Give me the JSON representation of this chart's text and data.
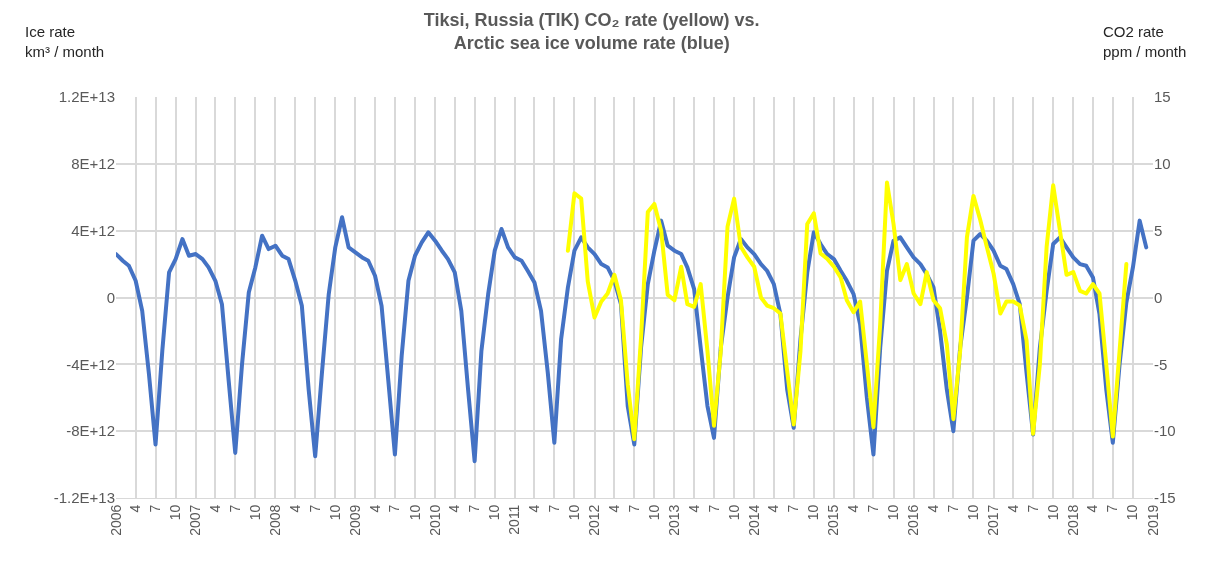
{
  "chart_data": {
    "type": "line",
    "title": "Tiksi, Russia (TIK) CO₂ rate (yellow) vs.\nArctic sea ice volume rate (blue)",
    "ylabel": "Ice rate\nkm³ / month",
    "y2label": "CO2 rate\nppm / month",
    "xlim": [
      "2006-01",
      "2019-01"
    ],
    "xticks": [
      {
        "value": "2006-01",
        "label": "2006"
      },
      {
        "value": "2006-04",
        "label": "4"
      },
      {
        "value": "2006-07",
        "label": "7"
      },
      {
        "value": "2006-10",
        "label": "10"
      },
      {
        "value": "2007-01",
        "label": "2007"
      },
      {
        "value": "2007-04",
        "label": "4"
      },
      {
        "value": "2007-07",
        "label": "7"
      },
      {
        "value": "2007-10",
        "label": "10"
      },
      {
        "value": "2008-01",
        "label": "2008"
      },
      {
        "value": "2008-04",
        "label": "4"
      },
      {
        "value": "2008-07",
        "label": "7"
      },
      {
        "value": "2008-10",
        "label": "10"
      },
      {
        "value": "2009-01",
        "label": "2009"
      },
      {
        "value": "2009-04",
        "label": "4"
      },
      {
        "value": "2009-07",
        "label": "7"
      },
      {
        "value": "2009-10",
        "label": "10"
      },
      {
        "value": "2010-01",
        "label": "2010"
      },
      {
        "value": "2010-04",
        "label": "4"
      },
      {
        "value": "2010-07",
        "label": "7"
      },
      {
        "value": "2010-10",
        "label": "10"
      },
      {
        "value": "2011-01",
        "label": "2011"
      },
      {
        "value": "2011-04",
        "label": "4"
      },
      {
        "value": "2011-07",
        "label": "7"
      },
      {
        "value": "2011-10",
        "label": "10"
      },
      {
        "value": "2012-01",
        "label": "2012"
      },
      {
        "value": "2012-04",
        "label": "4"
      },
      {
        "value": "2012-07",
        "label": "7"
      },
      {
        "value": "2012-10",
        "label": "10"
      },
      {
        "value": "2013-01",
        "label": "2013"
      },
      {
        "value": "2013-04",
        "label": "4"
      },
      {
        "value": "2013-07",
        "label": "7"
      },
      {
        "value": "2013-10",
        "label": "10"
      },
      {
        "value": "2014-01",
        "label": "2014"
      },
      {
        "value": "2014-04",
        "label": "4"
      },
      {
        "value": "2014-07",
        "label": "7"
      },
      {
        "value": "2014-10",
        "label": "10"
      },
      {
        "value": "2015-01",
        "label": "2015"
      },
      {
        "value": "2015-04",
        "label": "4"
      },
      {
        "value": "2015-07",
        "label": "7"
      },
      {
        "value": "2015-10",
        "label": "10"
      },
      {
        "value": "2016-01",
        "label": "2016"
      },
      {
        "value": "2016-04",
        "label": "4"
      },
      {
        "value": "2016-07",
        "label": "7"
      },
      {
        "value": "2016-10",
        "label": "10"
      },
      {
        "value": "2017-01",
        "label": "2017"
      },
      {
        "value": "2017-04",
        "label": "4"
      },
      {
        "value": "2017-07",
        "label": "7"
      },
      {
        "value": "2017-10",
        "label": "10"
      },
      {
        "value": "2018-01",
        "label": "2018"
      },
      {
        "value": "2018-04",
        "label": "4"
      },
      {
        "value": "2018-07",
        "label": "7"
      },
      {
        "value": "2018-10",
        "label": "10"
      },
      {
        "value": "2019-01",
        "label": "2019"
      }
    ],
    "ylim": [
      -12000000000000.0,
      12000000000000.0
    ],
    "yticks": [
      {
        "value": -12000000000000.0,
        "label": "-1.2E+13"
      },
      {
        "value": -8000000000000.0,
        "label": "-8E+12"
      },
      {
        "value": -4000000000000.0,
        "label": "-4E+12"
      },
      0,
      {
        "value": 4000000000000.0,
        "label": "4E+12"
      },
      {
        "value": 8000000000000.0,
        "label": "8E+12"
      },
      {
        "value": 12000000000000.0,
        "label": "1.2E+13"
      }
    ],
    "y2lim": [
      -15,
      15
    ],
    "y2ticks": [
      -15,
      -10,
      -5,
      0,
      5,
      10,
      15
    ],
    "grid": true,
    "series": [
      {
        "color": "#4472c4",
        "x": [
          "2006-01",
          "2006-02",
          "2006-03",
          "2006-04",
          "2006-05",
          "2006-06",
          "2006-07",
          "2006-08",
          "2006-09",
          "2006-10",
          "2006-11",
          "2006-12",
          "2007-01",
          "2007-02",
          "2007-03",
          "2007-04",
          "2007-05",
          "2007-06",
          "2007-07",
          "2007-08",
          "2007-09",
          "2007-10",
          "2007-11",
          "2007-12",
          "2008-01",
          "2008-02",
          "2008-03",
          "2008-04",
          "2008-05",
          "2008-06",
          "2008-07",
          "2008-08",
          "2008-09",
          "2008-10",
          "2008-11",
          "2008-12",
          "2009-01",
          "2009-02",
          "2009-03",
          "2009-04",
          "2009-05",
          "2009-06",
          "2009-07",
          "2009-08",
          "2009-09",
          "2009-10",
          "2009-11",
          "2009-12",
          "2010-01",
          "2010-02",
          "2010-03",
          "2010-04",
          "2010-05",
          "2010-06",
          "2010-07",
          "2010-08",
          "2010-09",
          "2010-10",
          "2010-11",
          "2010-12",
          "2011-01",
          "2011-02",
          "2011-03",
          "2011-04",
          "2011-05",
          "2011-06",
          "2011-07",
          "2011-08",
          "2011-09",
          "2011-10",
          "2011-11",
          "2011-12",
          "2012-01",
          "2012-02",
          "2012-03",
          "2012-04",
          "2012-05",
          "2012-06",
          "2012-07",
          "2012-08",
          "2012-09",
          "2012-10",
          "2012-11",
          "2012-12",
          "2013-01",
          "2013-02",
          "2013-03",
          "2013-04",
          "2013-05",
          "2013-06",
          "2013-07",
          "2013-08",
          "2013-09",
          "2013-10",
          "2013-11",
          "2013-12",
          "2014-01",
          "2014-02",
          "2014-03",
          "2014-04",
          "2014-05",
          "2014-06",
          "2014-07",
          "2014-08",
          "2014-09",
          "2014-10",
          "2014-11",
          "2014-12",
          "2015-01",
          "2015-02",
          "2015-03",
          "2015-04",
          "2015-05",
          "2015-06",
          "2015-07",
          "2015-08",
          "2015-09",
          "2015-10",
          "2015-11",
          "2015-12",
          "2016-01",
          "2016-02",
          "2016-03",
          "2016-04",
          "2016-05",
          "2016-06",
          "2016-07",
          "2016-08",
          "2016-09",
          "2016-10",
          "2016-11",
          "2016-12",
          "2017-01",
          "2017-02",
          "2017-03",
          "2017-04",
          "2017-05",
          "2017-06",
          "2017-07",
          "2017-08",
          "2017-09",
          "2017-10",
          "2017-11",
          "2017-12",
          "2018-01",
          "2018-02",
          "2018-03",
          "2018-04",
          "2018-05",
          "2018-06",
          "2018-07",
          "2018-08",
          "2018-09",
          "2018-10",
          "2018-11",
          "2018-12"
        ],
        "values": [
          2600000000000.0,
          2200000000000.0,
          1900000000000.0,
          1000000000000.0,
          -800000000000.0,
          -4600000000000.0,
          -8800000000000.0,
          -3200000000000.0,
          1500000000000.0,
          2300000000000.0,
          3500000000000.0,
          2500000000000.0,
          2600000000000.0,
          2300000000000.0,
          1800000000000.0,
          1000000000000.0,
          -400000000000.0,
          -5000000000000.0,
          -9300000000000.0,
          -4000000000000.0,
          300000000000.0,
          1800000000000.0,
          3700000000000.0,
          2900000000000.0,
          3100000000000.0,
          2500000000000.0,
          2300000000000.0,
          1000000000000.0,
          -500000000000.0,
          -5500000000000.0,
          -9500000000000.0,
          -4500000000000.0,
          200000000000.0,
          3000000000000.0,
          4800000000000.0,
          3000000000000.0,
          2700000000000.0,
          2400000000000.0,
          2200000000000.0,
          1300000000000.0,
          -500000000000.0,
          -5000000000000.0,
          -9400000000000.0,
          -3500000000000.0,
          1000000000000.0,
          2500000000000.0,
          3300000000000.0,
          3900000000000.0,
          3400000000000.0,
          2800000000000.0,
          2300000000000.0,
          1500000000000.0,
          -800000000000.0,
          -5500000000000.0,
          -9800000000000.0,
          -3200000000000.0,
          200000000000.0,
          2800000000000.0,
          4100000000000.0,
          3000000000000.0,
          2400000000000.0,
          2200000000000.0,
          1600000000000.0,
          900000000000.0,
          -800000000000.0,
          -4500000000000.0,
          -8700000000000.0,
          -2500000000000.0,
          600000000000.0,
          2800000000000.0,
          3600000000000.0,
          3000000000000.0,
          2600000000000.0,
          2000000000000.0,
          1800000000000.0,
          1000000000000.0,
          -400000000000.0,
          -6500000000000.0,
          -8800000000000.0,
          -3000000000000.0,
          800000000000.0,
          2800000000000.0,
          4600000000000.0,
          3100000000000.0,
          2800000000000.0,
          2600000000000.0,
          1800000000000.0,
          500000000000.0,
          -3000000000000.0,
          -6500000000000.0,
          -8400000000000.0,
          -3000000000000.0,
          0,
          2400000000000.0,
          3500000000000.0,
          3000000000000.0,
          2600000000000.0,
          2000000000000.0,
          1600000000000.0,
          800000000000.0,
          -1000000000000.0,
          -5500000000000.0,
          -7800000000000.0,
          -2500000000000.0,
          1500000000000.0,
          3900000000000.0,
          3200000000000.0,
          2600000000000.0,
          2300000000000.0,
          1600000000000.0,
          1000000000000.0,
          200000000000.0,
          -1600000000000.0,
          -6000000000000.0,
          -9400000000000.0,
          -3000000000000.0,
          1600000000000.0,
          3400000000000.0,
          3600000000000.0,
          3000000000000.0,
          2400000000000.0,
          2000000000000.0,
          1400000000000.0,
          600000000000.0,
          -2000000000000.0,
          -5500000000000.0,
          -8000000000000.0,
          -3000000000000.0,
          0,
          3400000000000.0,
          3800000000000.0,
          3400000000000.0,
          2800000000000.0,
          1900000000000.0,
          1700000000000.0,
          800000000000.0,
          -400000000000.0,
          -4500000000000.0,
          -8200000000000.0,
          -3000000000000.0,
          400000000000.0,
          3200000000000.0,
          3600000000000.0,
          3000000000000.0,
          2400000000000.0,
          2000000000000.0,
          1900000000000.0,
          1200000000000.0,
          -1000000000000.0,
          -5500000000000.0,
          -8700000000000.0,
          -4000000000000.0,
          -300000000000.0,
          1800000000000.0,
          4600000000000.0,
          3000000000000.0
        ]
      },
      {
        "color": "#ffff00",
        "axis": "y2",
        "x": [
          "2011-09",
          "2011-10",
          "2011-11",
          "2011-12",
          "2012-01",
          "2012-02",
          "2012-03",
          "2012-04",
          "2012-05",
          "2012-06",
          "2012-07",
          "2012-08",
          "2012-09",
          "2012-10",
          "2012-11",
          "2012-12",
          "2013-01",
          "2013-02",
          "2013-03",
          "2013-04",
          "2013-05",
          "2013-06",
          "2013-07",
          "2013-08",
          "2013-09",
          "2013-10",
          "2013-11",
          "2013-12",
          "2014-01",
          "2014-02",
          "2014-03",
          "2014-04",
          "2014-05",
          "2014-06",
          "2014-07",
          "2014-08",
          "2014-09",
          "2014-10",
          "2014-11",
          "2014-12",
          "2015-01",
          "2015-02",
          "2015-03",
          "2015-04",
          "2015-05",
          "2015-06",
          "2015-07",
          "2015-08",
          "2015-09",
          "2015-10",
          "2015-11",
          "2015-12",
          "2016-01",
          "2016-02",
          "2016-03",
          "2016-04",
          "2016-05",
          "2016-06",
          "2016-07",
          "2016-08",
          "2016-09",
          "2016-10",
          "2016-11",
          "2016-12",
          "2017-01",
          "2017-02",
          "2017-03",
          "2017-04",
          "2017-05",
          "2017-06",
          "2017-07",
          "2017-08",
          "2017-09",
          "2017-10",
          "2017-11",
          "2017-12",
          "2018-01",
          "2018-02",
          "2018-03",
          "2018-04",
          "2018-05",
          "2018-06",
          "2018-07",
          "2018-08",
          "2018-09"
        ],
        "values": [
          3.5,
          7.8,
          7.4,
          1.2,
          -1.5,
          -0.3,
          0.3,
          1.7,
          -0.2,
          -6.5,
          -10.6,
          -3,
          6.4,
          7.0,
          5.0,
          0.2,
          -0.2,
          2.3,
          -0.5,
          -0.7,
          1.0,
          -4,
          -9.6,
          -4,
          5.3,
          7.4,
          3.8,
          3.0,
          2.3,
          0,
          -0.6,
          -0.8,
          -1.2,
          -5.5,
          -9.5,
          -4,
          5.5,
          6.3,
          3.3,
          2.9,
          2.3,
          1.5,
          -0.2,
          -1.1,
          -0.3,
          -5,
          -9.7,
          -2,
          8.6,
          5.5,
          1.3,
          2.5,
          0.3,
          -0.5,
          1.9,
          -0.2,
          -0.8,
          -3.5,
          -9.1,
          -4,
          4.5,
          7.6,
          5.8,
          3.8,
          1.8,
          -1.2,
          -0.3,
          -0.3,
          -0.6,
          -3.2,
          -10.2,
          -5,
          3.8,
          8.4,
          5.0,
          1.7,
          1.9,
          0.5,
          0.3,
          1.0,
          0.3,
          -5,
          -10.4,
          -4,
          2.5
        ]
      }
    ]
  }
}
